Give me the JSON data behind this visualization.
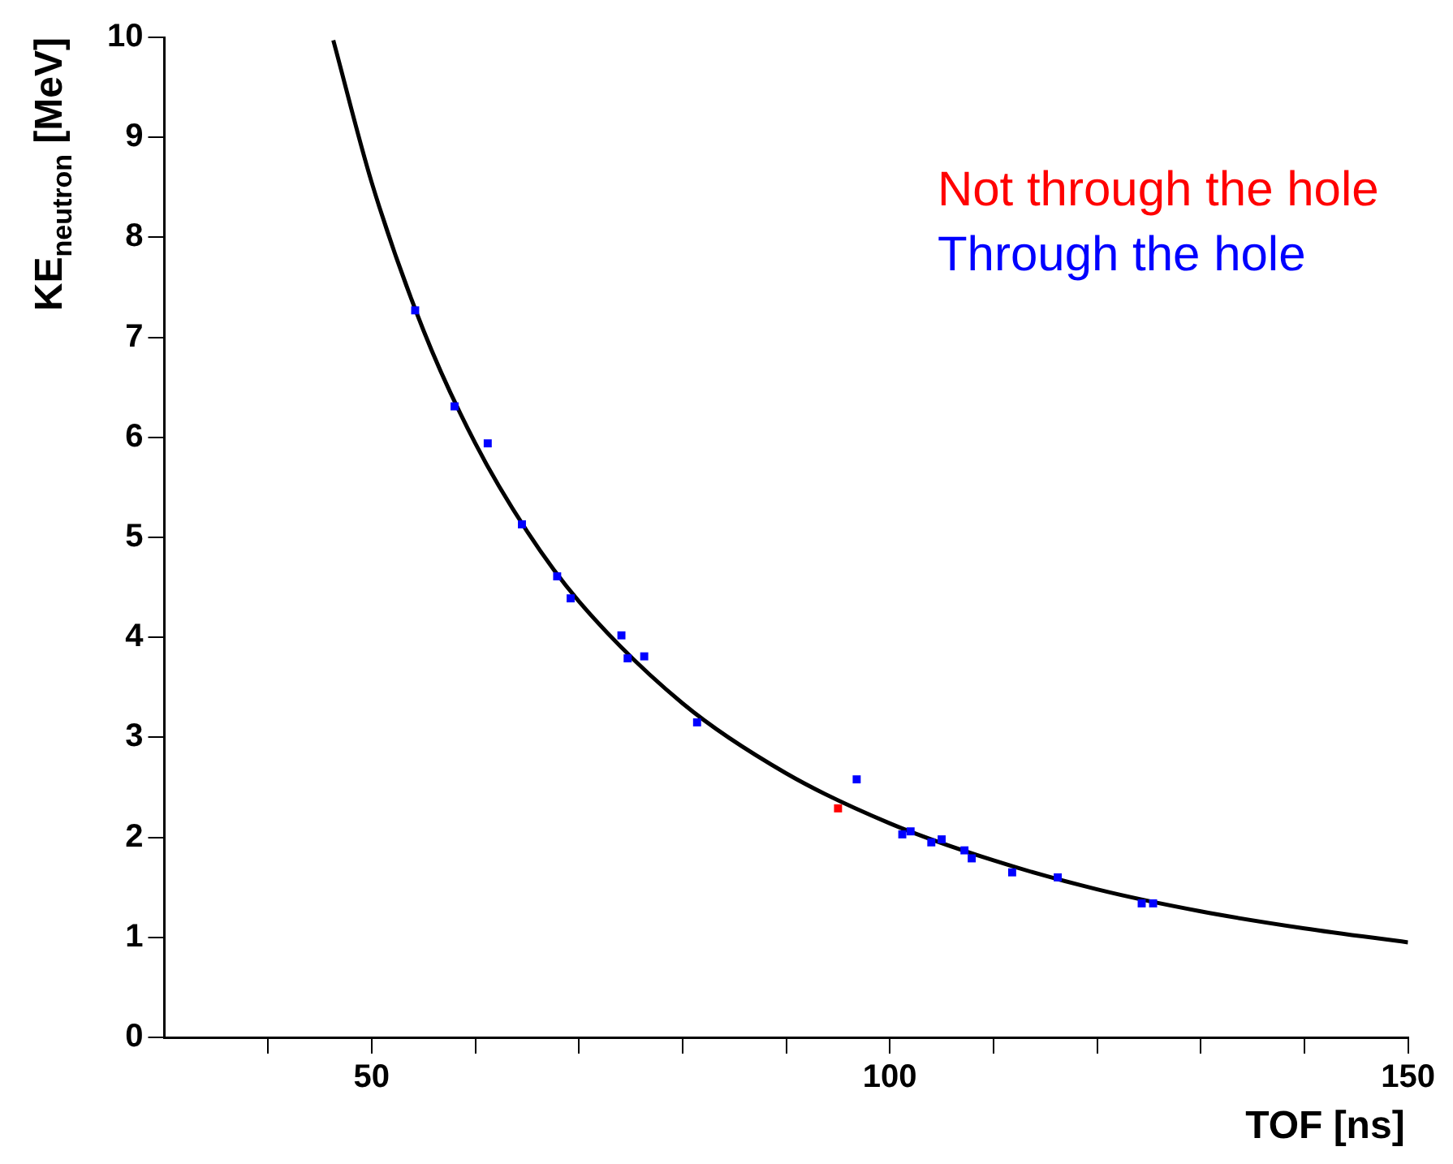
{
  "chart_data": {
    "type": "scatter",
    "xlabel": "TOF [ns]",
    "ylabel": "KE$_{neutron}$ [MeV]",
    "xlim": [
      30,
      150
    ],
    "ylim": [
      0,
      10
    ],
    "xticks": [
      {
        "value": 40,
        "label": null
      },
      50,
      {
        "value": 60,
        "label": null
      },
      {
        "value": 70,
        "label": null
      },
      {
        "value": 80,
        "label": null
      },
      {
        "value": 90,
        "label": null
      },
      100,
      {
        "value": 110,
        "label": null
      },
      {
        "value": 120,
        "label": null
      },
      {
        "value": 130,
        "label": null
      },
      {
        "value": 140,
        "label": null
      },
      150
    ],
    "yticks": [
      0,
      1,
      2,
      3,
      4,
      5,
      6,
      7,
      8,
      9,
      10
    ],
    "grid": false,
    "legend": "top right",
    "marker": "square",
    "series": [
      {
        "name": "Not through the hole",
        "color": "#ff0000",
        "x": [
          95.0
        ],
        "values": [
          2.29
        ]
      },
      {
        "name": "Through the hole",
        "color": "#0000ff",
        "x": [
          54.2,
          58.0,
          61.2,
          64.5,
          67.9,
          69.2,
          74.1,
          74.7,
          76.3,
          81.4,
          96.8,
          101.2,
          102.0,
          104.0,
          105.0,
          107.2,
          107.9,
          111.8,
          116.2,
          124.3,
          125.4
        ],
        "values": [
          7.27,
          6.31,
          5.94,
          5.13,
          4.61,
          4.39,
          4.02,
          3.79,
          3.81,
          3.15,
          2.58,
          2.03,
          2.06,
          1.95,
          1.98,
          1.87,
          1.79,
          1.65,
          1.6,
          1.34,
          1.34
        ]
      },
      {
        "color": "#000000",
        "type": "line",
        "marker": "none",
        "x": [
          46.3,
          50,
          55,
          60,
          65,
          70,
          80,
          90,
          100,
          110,
          120,
          130,
          140,
          150
        ],
        "values": [
          9.97,
          8.55,
          7.07,
          5.94,
          5.06,
          4.36,
          3.34,
          2.64,
          2.14,
          1.77,
          1.48,
          1.26,
          1.09,
          0.95
        ]
      }
    ]
  }
}
